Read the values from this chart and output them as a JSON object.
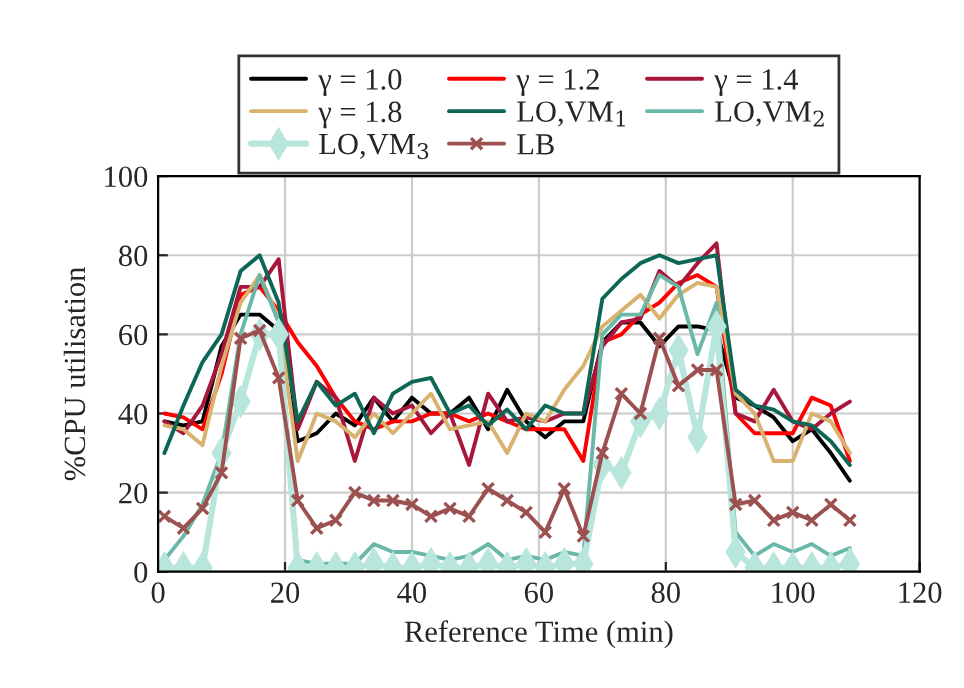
{
  "chart_data": {
    "type": "line",
    "xlabel": "Reference Time (min)",
    "ylabel": "%CPU utilisation",
    "x": [
      1,
      4,
      7,
      10,
      13,
      16,
      19,
      22,
      25,
      28,
      31,
      34,
      37,
      40,
      43,
      46,
      49,
      52,
      55,
      58,
      61,
      64,
      67,
      70,
      73,
      76,
      79,
      82,
      85,
      88,
      91,
      94,
      97,
      100,
      103,
      106,
      109
    ],
    "series": [
      {
        "name": "γ = 1.0",
        "color": "#000000",
        "values": [
          38,
          37,
          38,
          57,
          65,
          65,
          61,
          33,
          35,
          40,
          37,
          44,
          38,
          44,
          40,
          40,
          44,
          36,
          46,
          38,
          34,
          38,
          38,
          58,
          63,
          63,
          57,
          62,
          62,
          61,
          44,
          42,
          39,
          33,
          36,
          30,
          23
        ]
      },
      {
        "name": "γ = 1.2",
        "color": "#ff0000",
        "values": [
          40,
          39,
          36,
          50,
          70,
          72,
          66,
          58,
          52,
          44,
          38,
          36,
          38,
          38,
          40,
          40,
          38,
          40,
          38,
          36,
          36,
          36,
          28,
          58,
          60,
          65,
          68,
          73,
          75,
          72,
          40,
          35,
          35,
          35,
          44,
          42,
          28
        ]
      },
      {
        "name": "γ = 1.4",
        "color": "#a8163c",
        "values": [
          38,
          35,
          42,
          55,
          72,
          72,
          79,
          36,
          48,
          44,
          28,
          44,
          40,
          42,
          35,
          40,
          27,
          45,
          38,
          39,
          38,
          40,
          40,
          57,
          63,
          64,
          76,
          72,
          78,
          83,
          40,
          38,
          46,
          38,
          36,
          40,
          43
        ]
      },
      {
        "name": "γ = 1.8",
        "color": "#d9b26f",
        "values": [
          37,
          36,
          32,
          52,
          68,
          75,
          64,
          28,
          40,
          38,
          34,
          40,
          35,
          40,
          45,
          36,
          37,
          38,
          30,
          40,
          38,
          46,
          52,
          62,
          66,
          70,
          64,
          70,
          73,
          72,
          45,
          40,
          28,
          28,
          40,
          38,
          30
        ]
      },
      {
        "name": "LO,VM$_{1}$",
        "color": "#0e6655",
        "values": [
          30,
          42,
          53,
          60,
          76,
          80,
          68,
          38,
          48,
          42,
          45,
          35,
          45,
          48,
          49,
          40,
          42,
          37,
          41,
          36,
          42,
          40,
          40,
          69,
          74,
          78,
          80,
          78,
          79,
          80,
          46,
          42,
          41,
          38,
          37,
          33,
          27
        ]
      },
      {
        "name": "LO,VM$_{2}$",
        "color": "#6ab8a8",
        "values": [
          3,
          9,
          17,
          30,
          60,
          75,
          63,
          3,
          2,
          2,
          2,
          7,
          5,
          5,
          4,
          3,
          4,
          7,
          3,
          4,
          3,
          5,
          4,
          60,
          65,
          65,
          75,
          72,
          55,
          68,
          10,
          4,
          7,
          5,
          7,
          4,
          6
        ]
      },
      {
        "name": "LO,VM$_{3}$",
        "color": "#b8e6dc",
        "marker": "diamond",
        "values": [
          1,
          1,
          1,
          30,
          43,
          60,
          60,
          1,
          1,
          1,
          1,
          2,
          1,
          1,
          2,
          1,
          1,
          2,
          1,
          2,
          1,
          2,
          2,
          27,
          25,
          38,
          40,
          56,
          34,
          62,
          5,
          1,
          1,
          1,
          1,
          1,
          2
        ]
      },
      {
        "name": "LB",
        "color": "#9c5050",
        "marker": "cross",
        "values": [
          14,
          11,
          16,
          25,
          59,
          61,
          49,
          18,
          11,
          13,
          20,
          18,
          18,
          17,
          14,
          16,
          14,
          21,
          18,
          15,
          10,
          21,
          9,
          30,
          45,
          40,
          59,
          47,
          51,
          51,
          17,
          18,
          13,
          15,
          13,
          17,
          13
        ]
      }
    ],
    "xlim": [
      0,
      120
    ],
    "xticks": [
      0,
      20,
      40,
      60,
      80,
      100,
      120
    ],
    "ylim": [
      0,
      100
    ],
    "yticks": [
      0,
      20,
      40,
      60,
      80,
      100
    ],
    "grid": true,
    "legend": "top"
  }
}
